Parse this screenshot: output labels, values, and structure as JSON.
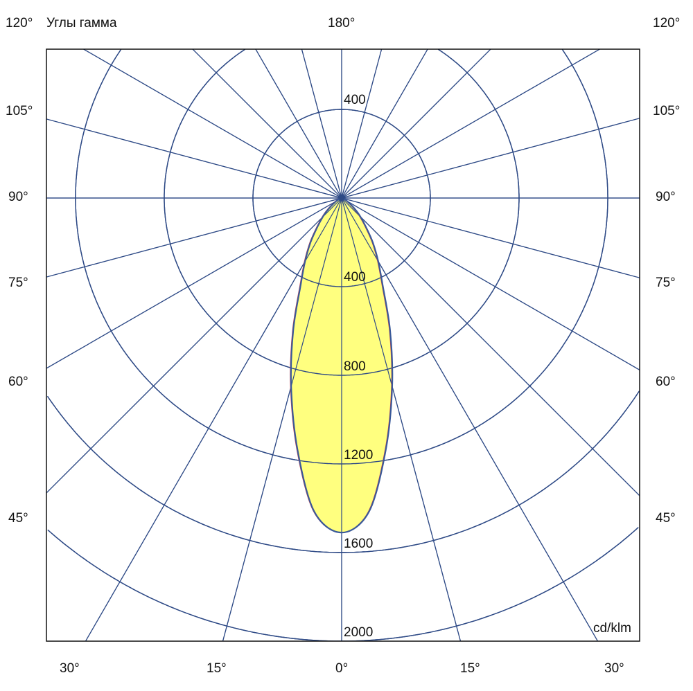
{
  "chart_data": {
    "type": "polar",
    "title": "Углы гамма",
    "unit_label": "cd/klm",
    "radial_ticks": [
      400,
      800,
      1200,
      1600,
      2000
    ],
    "radial_tick_labels": [
      "400",
      "800",
      "1200",
      "1600",
      "2000"
    ],
    "top_radial_label": "400",
    "radial_max": 2000,
    "angle_grid_step_deg": 15,
    "angle_labels": {
      "top": "180°",
      "left": [
        "120°",
        "105°",
        "90°",
        "75°",
        "60°",
        "45°"
      ],
      "right": [
        "120°",
        "105°",
        "90°",
        "75°",
        "60°",
        "45°"
      ],
      "bottom": [
        "30°",
        "15°",
        "0°",
        "15°",
        "30°"
      ]
    },
    "series": [
      {
        "gamma_deg": [
          0,
          5,
          10,
          15,
          20,
          25,
          30,
          35,
          40,
          45,
          50,
          60,
          70,
          80,
          90
        ],
        "intensity": [
          1510,
          1420,
          1150,
          880,
          640,
          440,
          330,
          245,
          170,
          120,
          80,
          30,
          10,
          2,
          0
        ]
      }
    ],
    "colors": {
      "grid": "#2e4a86",
      "fill": "#ffff7f",
      "outline": "#3a5a9a",
      "outline_secondary": "#e04040",
      "frame": "#111111"
    },
    "grid": true
  }
}
